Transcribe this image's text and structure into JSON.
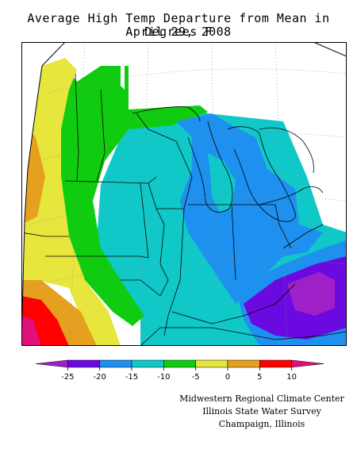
{
  "title": {
    "line1": "Average High Temp Departure from Mean in Degrees F",
    "line2": "April 29, 2008"
  },
  "legend": {
    "bins": [
      {
        "color": "#a020c8"
      },
      {
        "color": "#6a0ae0"
      },
      {
        "color": "#1e90f0"
      },
      {
        "color": "#10c8c8"
      },
      {
        "color": "#10cc10"
      },
      {
        "color": "#e6e63c"
      },
      {
        "color": "#e6a020"
      },
      {
        "color": "#ff0000"
      },
      {
        "color": "#e0107a"
      }
    ],
    "tick_labels": [
      "-25",
      "-20",
      "-15",
      "-10",
      "-5",
      "0",
      "5",
      "10"
    ]
  },
  "credits": {
    "line1": "Midwestern Regional Climate Center",
    "line2": "Illinois State Water Survey",
    "line3": "Champaign, Illinois"
  },
  "colors": {
    "very_cold": "#a020c8",
    "cold": "#6a0ae0",
    "blue": "#1e90f0",
    "cyan": "#10c8c8",
    "green": "#10cc10",
    "yellow": "#e6e63c",
    "orange": "#e6a020",
    "red": "#ff0000",
    "magenta": "#e0107a"
  }
}
